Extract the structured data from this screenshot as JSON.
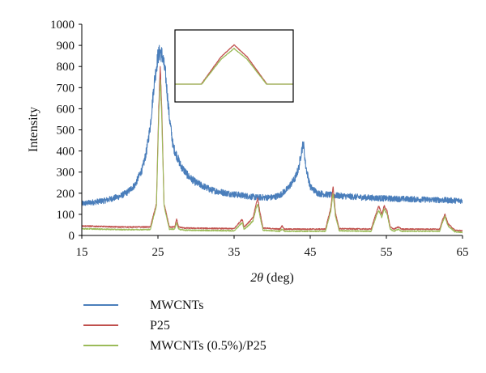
{
  "chart_data": {
    "type": "line",
    "xlabel_symbol": "2θ",
    "xlabel_unit": " (deg)",
    "ylabel": "Intensity",
    "xlim": [
      15,
      65
    ],
    "ylim": [
      0,
      1000
    ],
    "x_ticks": [
      15,
      25,
      35,
      45,
      55,
      65
    ],
    "y_ticks": [
      0,
      100,
      200,
      300,
      400,
      500,
      600,
      700,
      800,
      900,
      1000
    ],
    "grid": false,
    "legend_position": "bottom-left",
    "inset": {
      "description": "zoom of the ~25.3 deg peak (P25 vs MWCNTs (0.5%)/P25)",
      "grid": false
    },
    "series": [
      {
        "name": "MWCNTs",
        "color": "#4a7ebb",
        "noise": 12,
        "x": [
          15,
          16,
          18,
          20,
          21,
          22,
          23,
          23.5,
          24,
          24.5,
          25,
          25.3,
          25.6,
          26,
          26.5,
          27,
          28,
          29,
          30,
          32,
          34,
          36,
          38,
          40,
          41,
          42,
          43,
          43.5,
          43.8,
          44.1,
          44.4,
          45,
          46,
          48,
          50,
          52,
          55,
          58,
          60,
          62,
          64,
          65
        ],
        "y": [
          150,
          155,
          165,
          185,
          205,
          240,
          320,
          400,
          520,
          720,
          850,
          870,
          850,
          760,
          560,
          420,
          330,
          280,
          250,
          215,
          200,
          190,
          180,
          180,
          190,
          220,
          270,
          320,
          390,
          440,
          330,
          230,
          200,
          190,
          185,
          180,
          175,
          172,
          170,
          168,
          165,
          165
        ]
      },
      {
        "name": "P25",
        "color": "#c0504d",
        "noise": 4,
        "x": [
          15,
          20,
          24,
          24.8,
          25.1,
          25.3,
          25.5,
          25.8,
          26.5,
          27.2,
          27.45,
          27.7,
          28.5,
          35,
          35.9,
          36.1,
          36.3,
          37,
          37.5,
          37.9,
          38.1,
          38.4,
          38.8,
          41,
          41.3,
          41.6,
          47,
          47.7,
          48,
          48.3,
          48.8,
          53,
          53.7,
          54,
          54.4,
          54.7,
          55.1,
          55.5,
          56,
          56.6,
          57,
          62,
          62.4,
          62.7,
          63.1,
          64,
          65
        ],
        "y": [
          45,
          40,
          40,
          150,
          600,
          800,
          600,
          150,
          40,
          40,
          80,
          40,
          35,
          32,
          70,
          75,
          40,
          65,
          85,
          150,
          175,
          110,
          35,
          30,
          45,
          30,
          30,
          130,
          235,
          110,
          32,
          30,
          110,
          140,
          100,
          140,
          115,
          40,
          30,
          40,
          30,
          30,
          75,
          100,
          55,
          25,
          22
        ]
      },
      {
        "name": "MWCNTs (0.5%)/P25",
        "color": "#9bbb59",
        "noise": 4,
        "x": [
          15,
          20,
          24,
          24.8,
          25.1,
          25.3,
          25.5,
          25.8,
          26.5,
          27.2,
          27.45,
          27.7,
          28.5,
          35,
          35.9,
          36.1,
          36.3,
          37,
          37.5,
          37.9,
          38.1,
          38.4,
          38.8,
          41,
          41.3,
          41.6,
          47,
          47.7,
          48,
          48.3,
          48.8,
          53,
          53.7,
          54,
          54.4,
          54.7,
          55.1,
          55.5,
          56,
          56.6,
          57,
          62,
          62.4,
          62.7,
          63.1,
          64,
          65
        ],
        "y": [
          32,
          28,
          28,
          140,
          560,
          740,
          560,
          140,
          30,
          30,
          60,
          30,
          25,
          22,
          55,
          60,
          28,
          50,
          70,
          130,
          150,
          90,
          25,
          20,
          30,
          20,
          20,
          115,
          200,
          95,
          22,
          20,
          95,
          120,
          85,
          125,
          100,
          30,
          20,
          30,
          20,
          20,
          65,
          90,
          45,
          18,
          15
        ]
      }
    ]
  }
}
